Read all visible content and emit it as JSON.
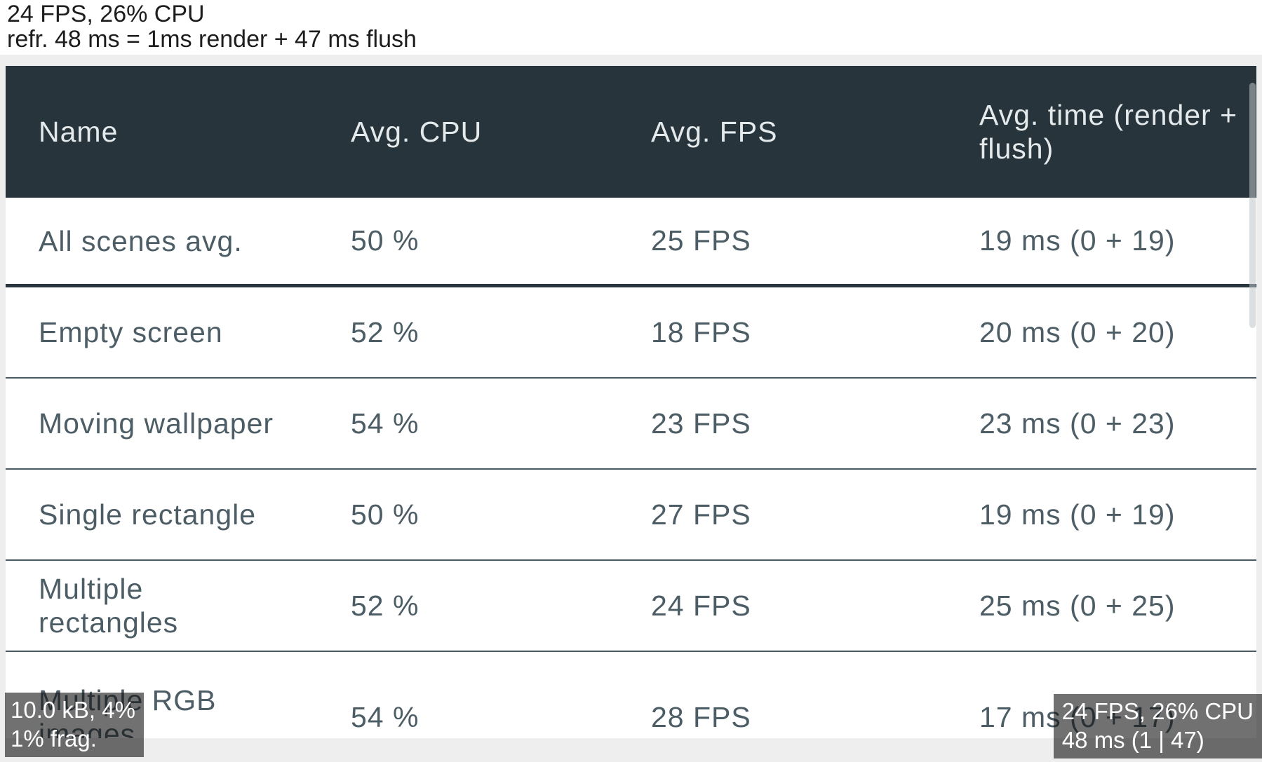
{
  "perf_monitor_top": {
    "line1": "24 FPS, 26% CPU",
    "line2": "refr. 48 ms = 1ms render + 47 ms flush"
  },
  "table": {
    "columns": [
      "Name",
      "Avg. CPU",
      "Avg. FPS",
      "Avg. time (render + flush)"
    ],
    "rows": [
      {
        "name": "All scenes avg.",
        "cpu": "50 %",
        "fps": "25 FPS",
        "time": "19 ms (0 + 19)"
      },
      {
        "name": "Empty screen",
        "cpu": "52 %",
        "fps": "18 FPS",
        "time": "20 ms (0 + 20)"
      },
      {
        "name": "Moving wallpaper",
        "cpu": "54 %",
        "fps": "23 FPS",
        "time": "23 ms (0 + 23)"
      },
      {
        "name": "Single rectangle",
        "cpu": "50 %",
        "fps": "27 FPS",
        "time": "19 ms (0 + 19)"
      },
      {
        "name": "Multiple rectangles",
        "cpu": "52 %",
        "fps": "24 FPS",
        "time": "25 ms (0 + 25)"
      },
      {
        "name": "Multiple RGB images",
        "cpu": "54 %",
        "fps": "28 FPS",
        "time": "17 ms (0 + 17)"
      }
    ]
  },
  "mem_monitor": {
    "line1": "10.0 kB, 4%",
    "line2": "1% frag."
  },
  "fps_monitor": {
    "line1": "24 FPS, 26% CPU",
    "line2": "48 ms (1 | 47)"
  },
  "colors": {
    "header_bg": "#28343b",
    "header_text": "#e4e9eb",
    "row_text": "#4c5d66",
    "thin_border": "#4a5a62",
    "thick_border": "#2a363e",
    "screen_band": "#eeeeee",
    "overlay_bg": "rgba(18,18,18,0.60)"
  }
}
